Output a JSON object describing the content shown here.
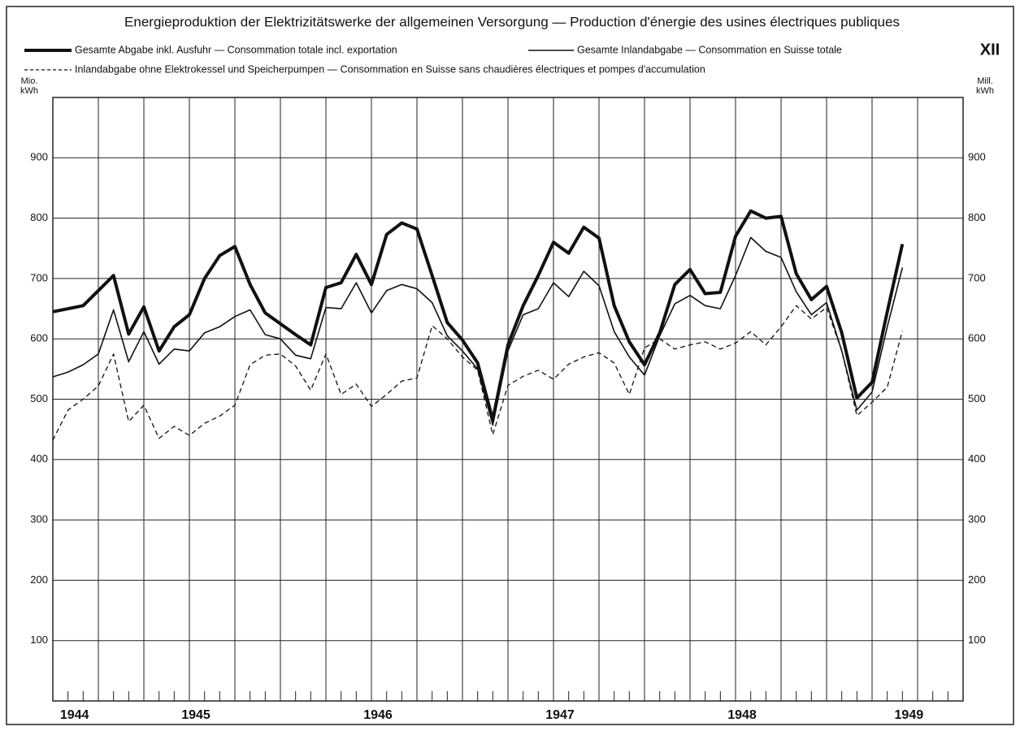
{
  "chart_data": {
    "type": "line",
    "title": "Energieproduktion der Elektrizitätswerke der allgemeinen Versorgung — Production d'énergie des usines électriques publiques",
    "annotation": "XII",
    "ylabel": [
      "Mio.",
      "kWh"
    ],
    "y2label": [
      "Mill.",
      "kWh"
    ],
    "categories": [
      null,
      "1944",
      null,
      null,
      null,
      null,
      null,
      null,
      null,
      "1945",
      null,
      null,
      null,
      null,
      null,
      null,
      null,
      null,
      null,
      null,
      null,
      "1946",
      null,
      null,
      null,
      null,
      null,
      null,
      null,
      null,
      null,
      null,
      null,
      "1947",
      null,
      null,
      null,
      null,
      null,
      null,
      null,
      null,
      null,
      null,
      null,
      "1948",
      null,
      null,
      null,
      null,
      null,
      null,
      null,
      null,
      null,
      null,
      "1949"
    ],
    "ylim": [
      0,
      1000
    ],
    "yticks": [
      100,
      200,
      300,
      400,
      500,
      600,
      700,
      800,
      900
    ],
    "grid": true,
    "series": [
      {
        "name": "Gesamte Abgabe inkl. Ausfuhr — Consommation totale incl. exportation",
        "color": "#111111",
        "line_width": 4,
        "line_style": "solid",
        "values": [
          645,
          650,
          655,
          680,
          705,
          608,
          653,
          580,
          620,
          640,
          700,
          738,
          753,
          690,
          643,
          625,
          607,
          590,
          685,
          693,
          740,
          690,
          773,
          792,
          782,
          705,
          627,
          598,
          560,
          466,
          590,
          655,
          705,
          760,
          742,
          785,
          767,
          655,
          595,
          557,
          610,
          690,
          715,
          675,
          677,
          770,
          812,
          800,
          803,
          708,
          665,
          687,
          610,
          502,
          528,
          645,
          757
        ]
      },
      {
        "name": "Gesamte Inlandabgabe — Consommation en Suisse totale",
        "color": "#111111",
        "line_width": 1.6,
        "line_style": "solid",
        "values": [
          537,
          545,
          557,
          575,
          648,
          562,
          612,
          558,
          583,
          580,
          610,
          620,
          637,
          648,
          607,
          600,
          573,
          567,
          652,
          650,
          693,
          643,
          680,
          690,
          683,
          660,
          605,
          580,
          550,
          457,
          580,
          640,
          650,
          693,
          670,
          712,
          688,
          612,
          570,
          540,
          605,
          658,
          672,
          655,
          650,
          705,
          768,
          745,
          735,
          678,
          640,
          660,
          580,
          482,
          512,
          620,
          718
        ]
      },
      {
        "name": "Inlandabgabe ohne Elektrokessel und Speicherpumpen — Consommation en Suisse sans chaudières électriques et pompes d'accumulation",
        "color": "#111111",
        "line_width": 1.3,
        "line_style": "dashed",
        "values": [
          432,
          482,
          500,
          522,
          575,
          463,
          490,
          435,
          455,
          440,
          460,
          472,
          490,
          557,
          573,
          575,
          555,
          515,
          575,
          508,
          525,
          488,
          508,
          530,
          535,
          622,
          600,
          570,
          548,
          441,
          523,
          538,
          548,
          533,
          558,
          570,
          577,
          560,
          508,
          585,
          600,
          583,
          590,
          595,
          583,
          593,
          612,
          590,
          620,
          655,
          633,
          652,
          580,
          473,
          495,
          520,
          613
        ]
      }
    ]
  }
}
